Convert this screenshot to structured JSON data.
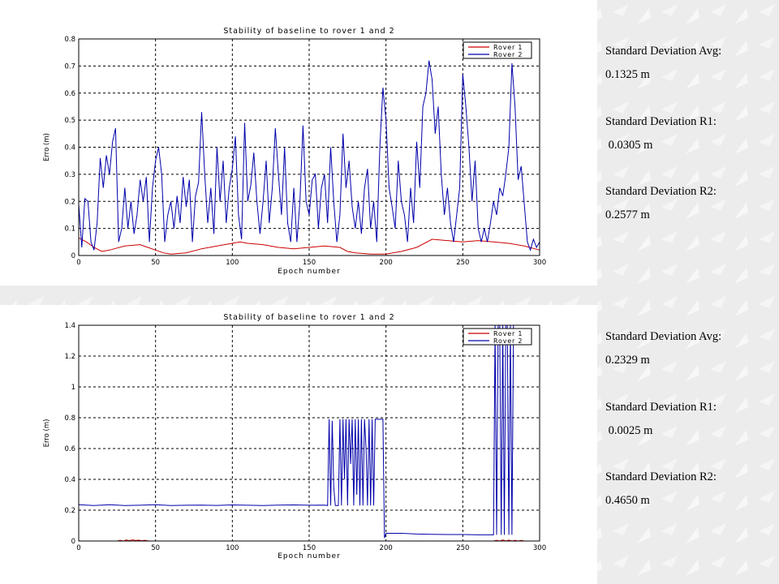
{
  "colors": {
    "rover1": "#cc0000",
    "rover2": "#0000aa",
    "grid": "#000000",
    "background": "#ececec"
  },
  "chart_data": [
    {
      "type": "line",
      "title": "Stability of baseline to rover 1 and 2",
      "xlabel": "Epoch number",
      "ylabel": "Erro (m)",
      "xlim": [
        0,
        300
      ],
      "ylim": [
        0,
        0.8
      ],
      "xticks": [
        0,
        50,
        100,
        150,
        200,
        250,
        300
      ],
      "yticks": [
        0,
        0.1,
        0.2,
        0.3,
        0.4,
        0.5,
        0.6,
        0.7,
        0.8
      ],
      "grid": true,
      "legend_position": "top-right",
      "series": [
        {
          "name": "Rover 1",
          "x": [
            0,
            5,
            10,
            15,
            20,
            30,
            40,
            45,
            50,
            55,
            60,
            70,
            80,
            90,
            100,
            105,
            110,
            120,
            130,
            140,
            150,
            160,
            170,
            175,
            180,
            190,
            200,
            210,
            220,
            225,
            230,
            240,
            250,
            260,
            270,
            280,
            290,
            300
          ],
          "values": [
            0.065,
            0.05,
            0.03,
            0.015,
            0.02,
            0.035,
            0.04,
            0.03,
            0.02,
            0.01,
            0.005,
            0.01,
            0.025,
            0.035,
            0.045,
            0.05,
            0.045,
            0.04,
            0.03,
            0.025,
            0.03,
            0.035,
            0.03,
            0.015,
            0.01,
            0.005,
            0.005,
            0.015,
            0.03,
            0.045,
            0.06,
            0.055,
            0.05,
            0.055,
            0.05,
            0.045,
            0.035,
            0.02
          ]
        },
        {
          "name": "Rover 2",
          "x": [
            0,
            2,
            4,
            6,
            8,
            10,
            12,
            14,
            16,
            18,
            20,
            22,
            24,
            26,
            28,
            30,
            32,
            34,
            36,
            38,
            40,
            42,
            44,
            46,
            48,
            50,
            52,
            54,
            56,
            58,
            60,
            62,
            64,
            66,
            68,
            70,
            72,
            74,
            76,
            78,
            80,
            82,
            84,
            86,
            88,
            90,
            92,
            94,
            96,
            98,
            100,
            102,
            104,
            106,
            108,
            110,
            112,
            114,
            116,
            118,
            120,
            122,
            124,
            126,
            128,
            130,
            132,
            134,
            136,
            138,
            140,
            142,
            144,
            146,
            148,
            150,
            152,
            154,
            156,
            158,
            160,
            162,
            164,
            166,
            168,
            170,
            172,
            174,
            176,
            178,
            180,
            182,
            184,
            186,
            188,
            190,
            192,
            194,
            196,
            198,
            200,
            202,
            204,
            206,
            208,
            210,
            212,
            214,
            216,
            218,
            220,
            222,
            224,
            226,
            228,
            230,
            232,
            234,
            236,
            238,
            240,
            242,
            244,
            246,
            248,
            250,
            252,
            254,
            256,
            258,
            260,
            262,
            264,
            266,
            268,
            270,
            272,
            274,
            276,
            278,
            280,
            282,
            284,
            286,
            288,
            290,
            292,
            294,
            296,
            298,
            300
          ],
          "values": [
            0.19,
            0.03,
            0.21,
            0.2,
            0.05,
            0.02,
            0.12,
            0.36,
            0.25,
            0.37,
            0.3,
            0.42,
            0.47,
            0.05,
            0.1,
            0.25,
            0.1,
            0.2,
            0.08,
            0.15,
            0.28,
            0.2,
            0.29,
            0.05,
            0.25,
            0.35,
            0.4,
            0.3,
            0.05,
            0.15,
            0.2,
            0.1,
            0.22,
            0.12,
            0.29,
            0.18,
            0.28,
            0.05,
            0.22,
            0.27,
            0.53,
            0.3,
            0.12,
            0.25,
            0.08,
            0.4,
            0.2,
            0.35,
            0.12,
            0.25,
            0.32,
            0.44,
            0.15,
            0.06,
            0.49,
            0.2,
            0.26,
            0.38,
            0.2,
            0.08,
            0.2,
            0.35,
            0.12,
            0.25,
            0.47,
            0.3,
            0.15,
            0.4,
            0.12,
            0.05,
            0.25,
            0.05,
            0.2,
            0.48,
            0.2,
            0.15,
            0.28,
            0.3,
            0.1,
            0.25,
            0.3,
            0.12,
            0.4,
            0.2,
            0.05,
            0.15,
            0.45,
            0.25,
            0.35,
            0.18,
            0.1,
            0.2,
            0.08,
            0.25,
            0.32,
            0.1,
            0.2,
            0.05,
            0.4,
            0.62,
            0.5,
            0.25,
            0.18,
            0.1,
            0.35,
            0.2,
            0.15,
            0.05,
            0.25,
            0.12,
            0.42,
            0.25,
            0.55,
            0.6,
            0.72,
            0.65,
            0.45,
            0.55,
            0.3,
            0.15,
            0.25,
            0.12,
            0.05,
            0.15,
            0.25,
            0.67,
            0.55,
            0.4,
            0.2,
            0.35,
            0.1,
            0.05,
            0.1,
            0.05,
            0.12,
            0.2,
            0.15,
            0.25,
            0.22,
            0.3,
            0.4,
            0.71,
            0.55,
            0.28,
            0.33,
            0.19,
            0.05,
            0.02,
            0.06,
            0.03,
            0.05
          ]
        }
      ]
    },
    {
      "type": "line",
      "title": "Stability of baseline to rover 1 and 2",
      "xlabel": "Epoch number",
      "ylabel": "Erro (m)",
      "xlim": [
        0,
        300
      ],
      "ylim": [
        0,
        1.4
      ],
      "xticks": [
        0,
        50,
        100,
        150,
        200,
        250,
        300
      ],
      "yticks": [
        0,
        0.2,
        0.4,
        0.6,
        0.8,
        1,
        1.2,
        1.4
      ],
      "ytick_labels": [
        "0",
        "0.2",
        "0.4",
        "0.6",
        "0.8",
        "1",
        "1.2",
        "1.4"
      ],
      "grid": true,
      "legend_position": "top-right",
      "series": [
        {
          "name": "Rover 1",
          "x": [
            0,
            25,
            27,
            29,
            31,
            33,
            35,
            37,
            39,
            41,
            43,
            45,
            47,
            50,
            100,
            150,
            200,
            270,
            272,
            274,
            276,
            278,
            280,
            282,
            284,
            286,
            288,
            290,
            300
          ],
          "values": [
            0,
            0,
            0.005,
            0,
            0.007,
            0.002,
            0.008,
            0.003,
            0.006,
            0.002,
            0.005,
            0.001,
            0,
            0,
            0,
            0,
            0,
            0,
            0.005,
            0,
            0.007,
            0,
            0.006,
            0,
            0.005,
            0,
            0.004,
            0,
            0
          ]
        },
        {
          "name": "Rover 2",
          "x": [
            0,
            10,
            20,
            30,
            40,
            50,
            60,
            70,
            80,
            90,
            100,
            110,
            120,
            130,
            140,
            150,
            160,
            162,
            163,
            164,
            165,
            166,
            167,
            168,
            169,
            170,
            171,
            172,
            173,
            174,
            175,
            176,
            177,
            178,
            179,
            180,
            181,
            182,
            183,
            184,
            185,
            186,
            187,
            188,
            189,
            190,
            191,
            192,
            193,
            194,
            195,
            196,
            197,
            198,
            199,
            200,
            210,
            220,
            230,
            240,
            250,
            260,
            270,
            271,
            272,
            273,
            274,
            275,
            276,
            277,
            278,
            279,
            280,
            281,
            282,
            283,
            284,
            285,
            286
          ],
          "values": [
            0.235,
            0.23,
            0.235,
            0.23,
            0.232,
            0.235,
            0.23,
            0.232,
            0.233,
            0.231,
            0.234,
            0.232,
            0.23,
            0.233,
            0.234,
            0.232,
            0.233,
            0.23,
            0.79,
            0.23,
            0.78,
            0.35,
            0.23,
            0.23,
            0.23,
            0.79,
            0.23,
            0.79,
            0.4,
            0.79,
            0.23,
            0.79,
            0.5,
            0.79,
            0.23,
            0.79,
            0.3,
            0.79,
            0.23,
            0.79,
            0.23,
            0.79,
            0.6,
            0.23,
            0.79,
            0.23,
            0.79,
            0.23,
            0.79,
            0.79,
            0.79,
            0.79,
            0.79,
            0.79,
            0.02,
            0.05,
            0.05,
            0.045,
            0.043,
            0.042,
            0.042,
            0.04,
            0.04,
            1.4,
            0.04,
            1.4,
            1.4,
            0.04,
            1.4,
            0.04,
            1.4,
            1.4,
            0.04,
            1.4,
            0.04,
            1.4,
            1.4,
            1.4,
            1.4
          ]
        }
      ]
    }
  ],
  "stats": [
    {
      "avg_label": "Standard Deviation Avg:",
      "avg_value": "0.1325 m",
      "r1_label": "Standard Deviation R1:",
      "r1_value": " 0.0305 m",
      "r2_label": "Standard Deviation R2:",
      "r2_value": "0.2577 m"
    },
    {
      "avg_label": "Standard Deviation Avg:",
      "avg_value": "0.2329 m",
      "r1_label": "Standard Deviation R1:",
      "r1_value": " 0.0025 m",
      "r2_label": "Standard Deviation R2:",
      "r2_value": "0.4650 m"
    }
  ]
}
